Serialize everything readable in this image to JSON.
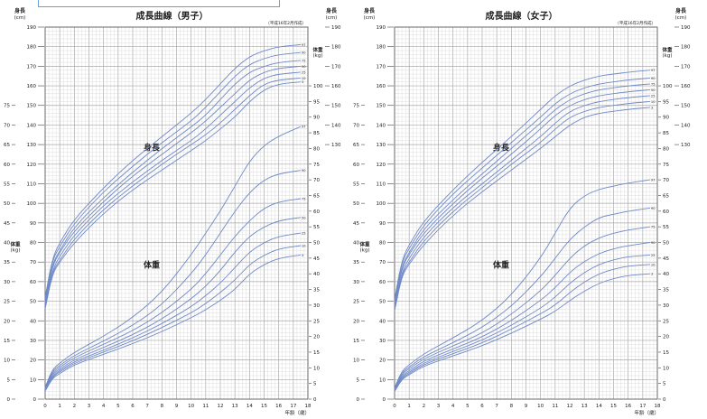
{
  "colors": {
    "curve": "#6f89c7",
    "grid_minor": "#d6d6d6",
    "grid_major": "#a9a9a9",
    "text": "#222222",
    "box": "#6a9fd6"
  },
  "x_axis": {
    "title": "年齢（歳）",
    "ticks": [
      0,
      1,
      2,
      3,
      4,
      5,
      6,
      7,
      8,
      9,
      10,
      11,
      12,
      13,
      14,
      15,
      16,
      17,
      18
    ],
    "range": [
      0,
      18
    ]
  },
  "charts": [
    {
      "id": "boys",
      "title": "成長曲線（男子）",
      "note": "（平成16年2月作成）",
      "height_unit_label": [
        "身長",
        "(cm)"
      ],
      "weight_unit_label": [
        "体重",
        "(kg)"
      ],
      "height_band_label": "身長",
      "weight_band_label": "体重",
      "left_height_ticks": [
        0,
        10,
        20,
        30,
        40,
        50,
        60,
        70,
        80,
        90,
        100,
        110,
        120,
        130,
        140,
        150,
        160,
        170,
        180,
        190
      ],
      "left_weight_ticks": [
        0,
        5,
        10,
        15,
        20,
        25,
        30,
        35,
        40,
        45,
        50,
        55,
        60,
        65,
        70,
        75
      ],
      "right_height_ticks": [
        130,
        140,
        150,
        160,
        170,
        180,
        190
      ],
      "right_weight_ticks": [
        0,
        5,
        10,
        15,
        20,
        25,
        30,
        35,
        40,
        45,
        50,
        55,
        60,
        65,
        70,
        75,
        80,
        85,
        90,
        95,
        100
      ],
      "height_percentiles": [
        "97",
        "90",
        "75",
        "50",
        "25",
        "10",
        "3"
      ],
      "weight_percentiles": [
        "97",
        "90",
        "75",
        "50",
        "25",
        "10",
        "3"
      ]
    },
    {
      "id": "girls",
      "title": "成長曲線（女子）",
      "note": "（平成16年2月作成）",
      "height_unit_label": [
        "身長",
        "(cm)"
      ],
      "weight_unit_label": [
        "体重",
        "(kg)"
      ],
      "height_band_label": "身長",
      "weight_band_label": "体重",
      "left_height_ticks": [
        0,
        10,
        20,
        30,
        40,
        50,
        60,
        70,
        80,
        90,
        100,
        110,
        120,
        130,
        140,
        150,
        160,
        170,
        180,
        190
      ],
      "left_weight_ticks": [
        0,
        5,
        10,
        15,
        20,
        25,
        30,
        35,
        40,
        45,
        50,
        55,
        60,
        65,
        70,
        75
      ],
      "right_height_ticks": [
        130,
        140,
        150,
        160,
        170,
        180,
        190
      ],
      "right_weight_ticks": [
        0,
        5,
        10,
        15,
        20,
        25,
        30,
        35,
        40,
        45,
        50,
        55,
        60,
        65,
        70,
        75,
        80,
        85,
        90,
        95,
        100
      ],
      "height_percentiles": [
        "97",
        "90",
        "75",
        "50",
        "25",
        "10",
        "3"
      ],
      "weight_percentiles": [
        "97",
        "90",
        "75",
        "50",
        "25",
        "10",
        "3"
      ]
    }
  ],
  "chart_data": [
    {
      "type": "line",
      "title": "成長曲線（男子）",
      "xlabel": "年齢（歳）",
      "ylabel": "身長(cm) / 体重(kg)",
      "xlim": [
        0,
        18
      ],
      "ylim": [
        0,
        190
      ],
      "x": [
        0,
        0.5,
        1,
        2,
        4,
        6,
        8,
        10,
        11,
        12,
        13,
        14,
        15,
        16,
        17.5
      ],
      "series": [
        {
          "name": "身長 97",
          "values": [
            52,
            72,
            80,
            92,
            108,
            122,
            134,
            146,
            153,
            161,
            169,
            175,
            178,
            180,
            181
          ]
        },
        {
          "name": "身長 90",
          "values": [
            51,
            71,
            78,
            90,
            106,
            119,
            131,
            142,
            149,
            157,
            165,
            171,
            174,
            176,
            177
          ]
        },
        {
          "name": "身長 75",
          "values": [
            50,
            69,
            76,
            88,
            103,
            116,
            128,
            139,
            145,
            153,
            161,
            167,
            170,
            172,
            173
          ]
        },
        {
          "name": "身長 50",
          "values": [
            49,
            68,
            75,
            86,
            101,
            114,
            125,
            136,
            142,
            149,
            156,
            163,
            167,
            169,
            170
          ]
        },
        {
          "name": "身長 25",
          "values": [
            48,
            66,
            73,
            84,
            99,
            111,
            122,
            132,
            138,
            145,
            152,
            159,
            164,
            166,
            167
          ]
        },
        {
          "name": "身長 10",
          "values": [
            47,
            65,
            71,
            82,
            97,
            109,
            120,
            130,
            135,
            141,
            148,
            155,
            161,
            163,
            164
          ]
        },
        {
          "name": "身長 3",
          "values": [
            46,
            64,
            70,
            80,
            95,
            107,
            117,
            127,
            132,
            138,
            144,
            152,
            158,
            161,
            162
          ]
        },
        {
          "name": "体重 97",
          "values": [
            3.8,
            9.5,
            11.5,
            15,
            20,
            26,
            34,
            46,
            53,
            60,
            68,
            76,
            81,
            84,
            87
          ]
        },
        {
          "name": "体重 90",
          "values": [
            3.6,
            9,
            10.8,
            14,
            18.5,
            23.5,
            30,
            40,
            46,
            53,
            60,
            66,
            70,
            72,
            73
          ]
        },
        {
          "name": "体重 75",
          "values": [
            3.4,
            8.5,
            10.2,
            13.3,
            17.5,
            21.8,
            27.5,
            35,
            40,
            46,
            52,
            57,
            61,
            63,
            64
          ]
        },
        {
          "name": "体重 50",
          "values": [
            3.1,
            8,
            9.6,
            12.6,
            16.5,
            20.5,
            25.5,
            32,
            36,
            41,
            47,
            52,
            55,
            57,
            58
          ]
        },
        {
          "name": "体重 25",
          "values": [
            2.9,
            7.5,
            9.1,
            12,
            15.6,
            19.5,
            24,
            29.5,
            33,
            37,
            42,
            47,
            50,
            52,
            53
          ]
        },
        {
          "name": "体重 10",
          "values": [
            2.7,
            7.1,
            8.7,
            11.5,
            15,
            18.6,
            22.8,
            27.5,
            30.5,
            34,
            38,
            43,
            46,
            48,
            49
          ]
        },
        {
          "name": "体重 3",
          "values": [
            2.5,
            6.7,
            8.2,
            11,
            14.3,
            17.7,
            21.5,
            26,
            28.5,
            31.5,
            35,
            40,
            43,
            45,
            46
          ]
        }
      ]
    },
    {
      "type": "line",
      "title": "成長曲線（女子）",
      "xlabel": "年齢（歳）",
      "ylabel": "身長(cm) / 体重(kg)",
      "xlim": [
        0,
        18
      ],
      "ylim": [
        0,
        190
      ],
      "x": [
        0,
        0.5,
        1,
        2,
        4,
        6,
        8,
        10,
        11,
        12,
        13,
        14,
        15,
        16,
        17.5
      ],
      "series": [
        {
          "name": "身長 97",
          "values": [
            51,
            71,
            79,
            91,
            107,
            121,
            134,
            148,
            155,
            160,
            163,
            165,
            166,
            167,
            168
          ]
        },
        {
          "name": "身長 90",
          "values": [
            50,
            70,
            77,
            89,
            105,
            118,
            131,
            144,
            151,
            156,
            159,
            161,
            162,
            163,
            164
          ]
        },
        {
          "name": "身長 75",
          "values": [
            49,
            68,
            75,
            87,
            102,
            115,
            128,
            141,
            148,
            153,
            156,
            158,
            159,
            160,
            161
          ]
        },
        {
          "name": "身長 50",
          "values": [
            48,
            67,
            74,
            85,
            100,
            113,
            125,
            138,
            145,
            150,
            153,
            155,
            156,
            157,
            158
          ]
        },
        {
          "name": "身長 25",
          "values": [
            47,
            65,
            72,
            83,
            98,
            110,
            122,
            134,
            141,
            147,
            150,
            152,
            153,
            154,
            155
          ]
        },
        {
          "name": "身長 10",
          "values": [
            46,
            64,
            70,
            81,
            96,
            108,
            120,
            131,
            138,
            144,
            147,
            149,
            150,
            151,
            152
          ]
        },
        {
          "name": "身長 3",
          "values": [
            45,
            63,
            69,
            79,
            94,
            106,
            117,
            128,
            134,
            140,
            144,
            146,
            147,
            148,
            149
          ]
        },
        {
          "name": "体重 97",
          "values": [
            3.6,
            9,
            11,
            14.5,
            19.5,
            25,
            33,
            45,
            53,
            61,
            65,
            67,
            68,
            69,
            70
          ]
        },
        {
          "name": "体重 90",
          "values": [
            3.4,
            8.5,
            10.3,
            13.6,
            18,
            22.8,
            29.5,
            39,
            45,
            51,
            55,
            58,
            59,
            60,
            61
          ]
        },
        {
          "name": "体重 75",
          "values": [
            3.2,
            8,
            9.7,
            12.9,
            17,
            21,
            27,
            34.5,
            39.5,
            45,
            49,
            51.5,
            53,
            54,
            55
          ]
        },
        {
          "name": "体重 50",
          "values": [
            3,
            7.5,
            9.1,
            12.2,
            16,
            19.8,
            25,
            31.5,
            35.5,
            40.5,
            44,
            46.5,
            48,
            49,
            50
          ]
        },
        {
          "name": "体重 25",
          "values": [
            2.8,
            7.1,
            8.6,
            11.6,
            15.2,
            18.8,
            23.5,
            29,
            32.5,
            37,
            40.5,
            43,
            44.5,
            45.5,
            46
          ]
        },
        {
          "name": "体重 10",
          "values": [
            2.6,
            6.7,
            8.2,
            11.1,
            14.5,
            17.9,
            22.3,
            27.2,
            30,
            34,
            37.5,
            40,
            41.5,
            42.5,
            43
          ]
        },
        {
          "name": "体重 3",
          "values": [
            2.4,
            6.3,
            7.8,
            10.6,
            13.8,
            17,
            21,
            25.5,
            28,
            31.5,
            34.5,
            37,
            38.5,
            39.5,
            40
          ]
        }
      ]
    }
  ]
}
